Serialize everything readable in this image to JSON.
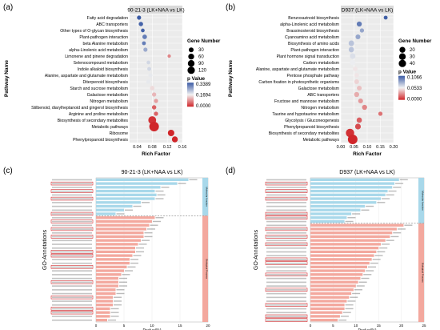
{
  "panels": [
    {
      "label": "(a)",
      "title": "90-21-3 (LK+NAA vs LK)",
      "chart_data": {
        "type": "scatter",
        "xlabel": "Rich Factor",
        "ylabel": "Pathway Name",
        "xlim": [
          0.02,
          0.16
        ],
        "xticks": [
          "0.04",
          "0.08",
          "0.12",
          "0.16"
        ],
        "categories": [
          "Fatty acid degradation",
          "ABC transporters",
          "Other types of O-glycan biosynthesis",
          "Plant-pathogen interaction",
          "beta Alanine metabolism",
          "alpha-Linolenic acid metabolism",
          "Limonene and pinene degradation",
          "Selenocompound metabolism",
          "Indole alkaloid biosynthesis",
          "Alanine, aspartate and glutamate metabolism",
          "Diterpenoid biosynthesis",
          "Starch and sucrose metabolism",
          "Galactose metabolism",
          "Nitrogen metabolism",
          "Stilbenoid, diarylheptanoid and gingerol biosynthesis",
          "Arginine and proline metabolism",
          "Biosynthesis of secondary metabolites",
          "Metabolic pathways",
          "Ribosome",
          "Phenylpropanoid biosynthesis"
        ],
        "rich_factor": [
          0.045,
          0.05,
          0.055,
          0.06,
          0.058,
          0.062,
          0.125,
          0.07,
          0.072,
          0.075,
          0.07,
          0.08,
          0.085,
          0.09,
          0.085,
          0.09,
          0.08,
          0.085,
          0.13,
          0.14
        ],
        "gene_number": [
          8,
          10,
          5,
          12,
          6,
          8,
          3,
          5,
          6,
          7,
          10,
          12,
          9,
          8,
          10,
          9,
          70,
          120,
          40,
          30
        ],
        "p_value": [
          0.34,
          0.33,
          0.33,
          0.3,
          0.3,
          0.25,
          0.08,
          0.2,
          0.2,
          0.18,
          0.18,
          0.15,
          0.12,
          0.1,
          0.05,
          0.05,
          0.01,
          0.0,
          0.0,
          0.0
        ],
        "legend": {
          "size_title": "Gene Number",
          "size_labels": [
            "30",
            "60",
            "90",
            "120"
          ],
          "color_title": "p Value",
          "color_labels": [
            "0.3389",
            "0.1694",
            "0.0000"
          ],
          "color_max": "#3b5ba5",
          "color_mid": "#f2f2f2",
          "color_min": "#d0262a"
        }
      }
    },
    {
      "label": "(b)",
      "title": "D937 (LK+NAA vs LK)",
      "chart_data": {
        "type": "scatter",
        "xlabel": "Rich Factor",
        "ylabel": "Pathway Name",
        "xlim": [
          0.0,
          0.2
        ],
        "xticks": [
          "0.00",
          "0.05",
          "0.10",
          "0.15",
          "0.20"
        ],
        "categories": [
          "Benzoxazinoid biosynthesis",
          "alpha-Linolenic acid metabolism",
          "Brassinosteroid biosynthesis",
          "Cyanoamino acid metabolism",
          "Biosynthesis of amino acids",
          "Plant-pathogen interaction",
          "Plant hormone signal transduction",
          "Carbon metabolism",
          "Alanine, aspartate and glutamate metabolism",
          "Pentose phosphate pathway",
          "Carbon fixation in photosynthetic organisms",
          "Galactose metabolism",
          "ABC transporters",
          "Fructose and mannose metabolism",
          "Nitrogen metabolism",
          "Taurine and hypotaurine metabolism",
          "Glycolysis / Gluconeogenesis",
          "Phenylpropanoid biosynthesis",
          "Biosynthesis of secondary metabolites",
          "Metabolic pathways"
        ],
        "rich_factor": [
          0.17,
          0.07,
          0.08,
          0.065,
          0.04,
          0.04,
          0.045,
          0.045,
          0.055,
          0.06,
          0.06,
          0.07,
          0.06,
          0.075,
          0.09,
          0.15,
          0.07,
          0.065,
          0.035,
          0.045
        ],
        "gene_number": [
          2,
          6,
          3,
          5,
          8,
          7,
          8,
          8,
          4,
          4,
          5,
          5,
          6,
          5,
          6,
          3,
          7,
          9,
          28,
          40
        ],
        "p_value": [
          0.105,
          0.095,
          0.08,
          0.08,
          0.07,
          0.07,
          0.06,
          0.055,
          0.05,
          0.05,
          0.045,
          0.04,
          0.035,
          0.03,
          0.025,
          0.02,
          0.015,
          0.01,
          0.003,
          0.0
        ],
        "legend": {
          "size_title": "Gene Number",
          "size_labels": [
            "20",
            "30",
            "40"
          ],
          "color_title": "p Value",
          "color_labels": [
            "0.1066",
            "0.0533",
            "0.0000"
          ],
          "color_max": "#3b5ba5",
          "color_mid": "#f2f2f2",
          "color_min": "#d0262a"
        }
      }
    },
    {
      "label": "(c)",
      "title": "90-21-3 (LK+NAA vs LK)",
      "chart_data": {
        "type": "bar",
        "ylabel": "GO-Annotations",
        "xlabel": "Pvalue(%)",
        "xlim": [
          0,
          20
        ],
        "xticks": [
          "0",
          "5",
          "10",
          "15",
          "20"
        ],
        "groups": [
          {
            "name": "Molecular function",
            "color": "#a8d8ea",
            "values": [
              16.5,
              14.5,
              11.5,
              10.5,
              10.8,
              10.5,
              8.0,
              6.5,
              5.0,
              3.5
            ]
          },
          {
            "name": "Biological Process",
            "color": "#f3a89e",
            "values": [
              10.5,
              10.0,
              9.5,
              9.0,
              8.5,
              8.5,
              8.0,
              7.5,
              7.0,
              7.0,
              6.5,
              6.0,
              6.0,
              5.5,
              5.0,
              4.5,
              4.0,
              4.0,
              4.0,
              3.5,
              3.5,
              3.0,
              3.0,
              3.0,
              2.5,
              2.5,
              2.5,
              2.0
            ]
          }
        ],
        "highlight_color": "#d0262a"
      }
    },
    {
      "label": "(d)",
      "title": "D937 (LK+NAA vs LK)",
      "chart_data": {
        "type": "bar",
        "ylabel": "GO-Annotations",
        "xlabel": "Pvalue(%)",
        "xlim": [
          0,
          25
        ],
        "xticks": [
          "0",
          "5",
          "10",
          "15",
          "20",
          "25"
        ],
        "groups": [
          {
            "name": "Molecular function",
            "color": "#a8d8ea",
            "values": [
              19.5,
              18.5,
              18.0,
              17.0,
              16.5,
              15.5,
              14.5,
              12.0,
              11.0,
              9.0,
              8.0,
              7.5
            ]
          },
          {
            "name": "Biological Process",
            "color": "#f3a89e",
            "values": [
              20.5,
              19.0,
              18.0,
              17.5,
              16.5,
              15.5,
              15.0,
              14.5,
              14.0,
              13.5,
              13.0,
              12.5,
              12.0,
              11.5,
              11.0,
              10.5,
              10.0,
              9.5,
              9.0,
              8.5,
              8.0,
              7.5,
              7.5,
              7.0,
              6.5,
              6.0
            ]
          }
        ],
        "highlight_color": "#d0262a"
      }
    }
  ]
}
